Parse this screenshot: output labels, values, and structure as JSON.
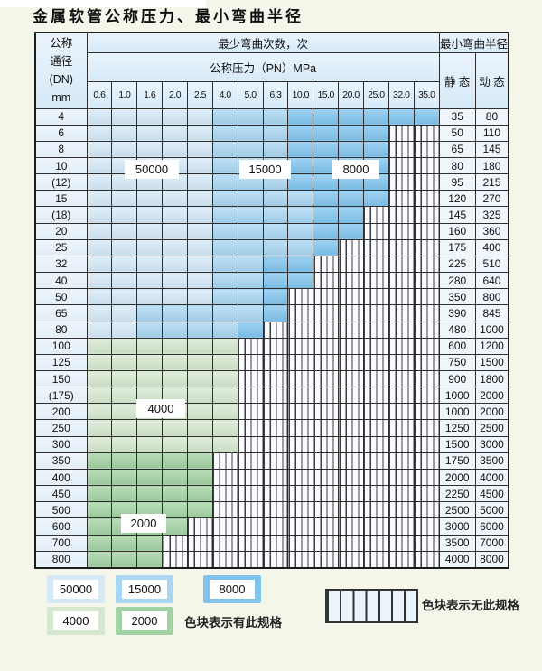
{
  "title": "金属软管公称压力、最小弯曲半径",
  "colors": {
    "c50000": "#d5e9f7",
    "c15000": "#a9d6f2",
    "c8000": "#80c4ee",
    "c4000": "#d5e8cf",
    "c2000": "#a2d2a3",
    "grid": "#2e2e2e",
    "hatch_line": "#3e3e3e",
    "header_bg": "#d6e9f7",
    "page_bg": "#f5f6ea"
  },
  "zone_key": {
    "A": "50000",
    "B": "15000",
    "C": "8000",
    "D": "4000",
    "E": "2000",
    "X": "无此规格"
  },
  "zone_color_map": {
    "A": "c50000",
    "B": "c15000",
    "C": "c8000",
    "D": "c4000",
    "E": "c2000"
  },
  "inline_labels": [
    "50000",
    "15000",
    "8000",
    "4000",
    "2000"
  ],
  "table": {
    "header": {
      "dn_lines": [
        "公称",
        "通径",
        "(DN)",
        "mm"
      ],
      "cycles": "最少弯曲次数，次",
      "pressure": "公称压力（PN）MPa",
      "radius": "最小弯曲半径",
      "static_label": "静 态",
      "dynamic_label": "动 态",
      "pressures": [
        "0.6",
        "1.0",
        "1.6",
        "2.0",
        "2.5",
        "4.0",
        "5.0",
        "6.3",
        "10.0",
        "15.0",
        "20.0",
        "25.0",
        "32.0",
        "35.0"
      ]
    },
    "rows": [
      {
        "dn": "4",
        "zones": "AAAAABBBCCCCCC",
        "static": "35",
        "dynamic": "80"
      },
      {
        "dn": "6",
        "zones": "AAAAABBBCCCCXX",
        "static": "50",
        "dynamic": "110"
      },
      {
        "dn": "8",
        "zones": "AAAAABBBCCCCXX",
        "static": "65",
        "dynamic": "145"
      },
      {
        "dn": "10",
        "zones": "AAAAABBBCCCCXX",
        "static": "80",
        "dynamic": "180"
      },
      {
        "dn": "(12)",
        "zones": "AAAAABBBCCCCXX",
        "static": "95",
        "dynamic": "215"
      },
      {
        "dn": "15",
        "zones": "AAAAABBBBCCCXX",
        "static": "120",
        "dynamic": "270"
      },
      {
        "dn": "(18)",
        "zones": "AAAAABBBBCCXXX",
        "static": "145",
        "dynamic": "325"
      },
      {
        "dn": "20",
        "zones": "AAAAABBBBCCXXX",
        "static": "160",
        "dynamic": "360"
      },
      {
        "dn": "25",
        "zones": "AAAAABBBBCXXXX",
        "static": "175",
        "dynamic": "400"
      },
      {
        "dn": "32",
        "zones": "AAAAABBCCXXXXX",
        "static": "225",
        "dynamic": "510"
      },
      {
        "dn": "40",
        "zones": "AAAAABBCCXXXXX",
        "static": "280",
        "dynamic": "640"
      },
      {
        "dn": "50",
        "zones": "AAAAABBCXXXXXX",
        "static": "350",
        "dynamic": "800"
      },
      {
        "dn": "65",
        "zones": "AABBBBBCXXXXXX",
        "static": "390",
        "dynamic": "845"
      },
      {
        "dn": "80",
        "zones": "AABBBBCXXXXXXX",
        "static": "480",
        "dynamic": "1000"
      },
      {
        "dn": "100",
        "zones": "DDDDDDXXXXXXXX",
        "static": "600",
        "dynamic": "1200"
      },
      {
        "dn": "125",
        "zones": "DDDDDDXXXXXXXX",
        "static": "750",
        "dynamic": "1500"
      },
      {
        "dn": "150",
        "zones": "DDDDDDXXXXXXXX",
        "static": "900",
        "dynamic": "1800"
      },
      {
        "dn": "(175)",
        "zones": "DDDDDDXXXXXXXX",
        "static": "1000",
        "dynamic": "2000"
      },
      {
        "dn": "200",
        "zones": "DDDDDDXXXXXXXX",
        "static": "1000",
        "dynamic": "2000"
      },
      {
        "dn": "250",
        "zones": "DDDDDDXXXXXXXX",
        "static": "1250",
        "dynamic": "2500"
      },
      {
        "dn": "300",
        "zones": "DDDDDDXXXXXXXX",
        "static": "1500",
        "dynamic": "3000"
      },
      {
        "dn": "350",
        "zones": "EEEEEXXXXXXXXX",
        "static": "1750",
        "dynamic": "3500"
      },
      {
        "dn": "400",
        "zones": "EEEEEXXXXXXXXX",
        "static": "2000",
        "dynamic": "4000"
      },
      {
        "dn": "450",
        "zones": "EEEEEXXXXXXXXX",
        "static": "2250",
        "dynamic": "4500"
      },
      {
        "dn": "500",
        "zones": "EEEEEXXXXXXXXX",
        "static": "2500",
        "dynamic": "5000"
      },
      {
        "dn": "600",
        "zones": "EEEEXXXXXXXXXX",
        "static": "3000",
        "dynamic": "6000"
      },
      {
        "dn": "700",
        "zones": "EEEXXXXXXXXXXX",
        "static": "3500",
        "dynamic": "7000"
      },
      {
        "dn": "800",
        "zones": "EEEXXXXXXXXXXX",
        "static": "4000",
        "dynamic": "8000"
      }
    ]
  },
  "legend": {
    "swatches": [
      {
        "value": "50000",
        "color_key": "c50000"
      },
      {
        "value": "15000",
        "color_key": "c15000"
      },
      {
        "value": "8000",
        "color_key": "c8000"
      },
      {
        "value": "4000",
        "color_key": "c4000"
      },
      {
        "value": "2000",
        "color_key": "c2000"
      }
    ],
    "has_spec_note": "色块表示有此规格",
    "no_spec_note": "色块表示无此规格"
  }
}
